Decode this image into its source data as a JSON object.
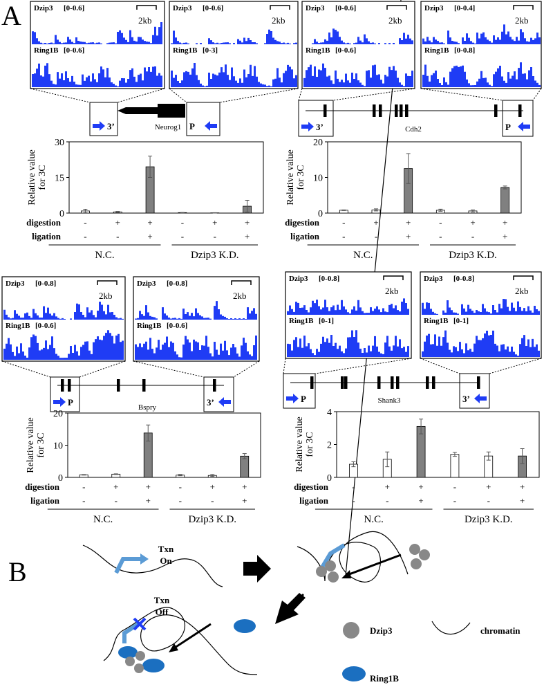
{
  "panel_labels": [
    "A",
    "B"
  ],
  "loci": [
    {
      "gene": "Neurog1",
      "boxes": [
        "3’",
        "P"
      ],
      "windows": [
        {
          "scale": "2kb",
          "tracks": [
            {
              "name": "Dzip3",
              "range": "[0-0.6]"
            },
            {
              "name": "Ring1B",
              "range": "[0-0.6]"
            }
          ]
        },
        {
          "scale": "2kb",
          "tracks": [
            {
              "name": "Dzip3",
              "range": "[0-0.6]"
            },
            {
              "name": "Ring1B",
              "range": "[0-3]"
            }
          ]
        }
      ]
    },
    {
      "gene": "Cdh2",
      "boxes": [
        "3’",
        "P"
      ],
      "windows": [
        {
          "scale": "2kb",
          "tracks": [
            {
              "name": "Dzip3",
              "range": "[0-0.6]"
            },
            {
              "name": "Ring1B",
              "range": "[0-0.6]"
            }
          ]
        },
        {
          "scale": "2kb",
          "tracks": [
            {
              "name": "Dzip3",
              "range": "[0-0.4]"
            },
            {
              "name": "Ring1B",
              "range": "[0-0.8]"
            }
          ]
        }
      ]
    },
    {
      "gene": "Bspry",
      "boxes": [
        "P",
        "3’"
      ],
      "windows": [
        {
          "scale": "2kb",
          "tracks": [
            {
              "name": "Dzip3",
              "range": "[0-0.8]"
            },
            {
              "name": "Ring1B",
              "range": "[0-0.6]"
            }
          ]
        },
        {
          "scale": "2kb",
          "tracks": [
            {
              "name": "Dzip3",
              "range": "[0-0.8]"
            },
            {
              "name": "Ring1B",
              "range": "[0-0.6]"
            }
          ]
        }
      ]
    },
    {
      "gene": "Shank3",
      "boxes": [
        "P",
        "3’"
      ],
      "windows": [
        {
          "scale": "2kb",
          "tracks": [
            {
              "name": "Dzip3",
              "range": "[0-0.8]"
            },
            {
              "name": "Ring1B",
              "range": "[0-1]"
            }
          ]
        },
        {
          "scale": "2kb",
          "tracks": [
            {
              "name": "Dzip3",
              "range": "[0-0.8]"
            },
            {
              "name": "Ring1B",
              "range": "[0-1]"
            }
          ]
        }
      ]
    }
  ],
  "chart_data": [
    {
      "type": "bar",
      "ylabel": [
        "Relative value",
        "for 3C"
      ],
      "ylim": [
        0,
        30
      ],
      "yticks": [
        0,
        15,
        30
      ],
      "values": [
        0.9,
        0.5,
        19.5,
        0.2,
        0.1,
        2.9
      ],
      "errors": [
        0.7,
        0.2,
        4.5,
        0.1,
        0.1,
        2.5
      ],
      "colors": [
        "#ffffff",
        "#ffffff",
        "#808080",
        "#ffffff",
        "#ffffff",
        "#808080"
      ],
      "rows": [
        {
          "name": "digestion",
          "signs": [
            "-",
            "+",
            "+",
            "-",
            "+",
            "+"
          ]
        },
        {
          "name": "ligation",
          "signs": [
            "-",
            "-",
            "+",
            "-",
            "-",
            "+"
          ]
        }
      ],
      "groups": [
        "N.C.",
        "Dzip3 K.D."
      ]
    },
    {
      "type": "bar",
      "ylabel": [
        "Relative value",
        "for 3C"
      ],
      "ylim": [
        0,
        20
      ],
      "yticks": [
        0,
        10,
        20
      ],
      "values": [
        0.8,
        0.9,
        12.5,
        0.8,
        0.6,
        7.2
      ],
      "errors": [
        0.1,
        0.3,
        4.2,
        0.3,
        0.3,
        0.4
      ],
      "colors": [
        "#ffffff",
        "#ffffff",
        "#808080",
        "#ffffff",
        "#ffffff",
        "#808080"
      ],
      "rows": [
        {
          "name": "digestion",
          "signs": [
            "-",
            "+",
            "+",
            "-",
            "+",
            "+"
          ]
        },
        {
          "name": "ligation",
          "signs": [
            "-",
            "-",
            "+",
            "-",
            "-",
            "+"
          ]
        }
      ],
      "groups": [
        "N.C.",
        "Dzip3 K.D."
      ]
    },
    {
      "type": "bar",
      "ylabel": [
        "Relative value",
        "for 3C"
      ],
      "ylim": [
        0,
        20
      ],
      "yticks": [
        0,
        10,
        20
      ],
      "values": [
        0.8,
        1.0,
        13.8,
        0.7,
        0.6,
        6.6
      ],
      "errors": [
        0.1,
        0.1,
        2.5,
        0.2,
        0.3,
        0.8
      ],
      "colors": [
        "#ffffff",
        "#ffffff",
        "#808080",
        "#ffffff",
        "#ffffff",
        "#808080"
      ],
      "rows": [
        {
          "name": "digestion",
          "signs": [
            "-",
            "+",
            "+",
            "-",
            "+",
            "+"
          ]
        },
        {
          "name": "ligation",
          "signs": [
            "-",
            "-",
            "+",
            "-",
            "-",
            "+"
          ]
        }
      ],
      "groups": [
        "N.C.",
        "Dzip3 K.D."
      ]
    },
    {
      "type": "bar",
      "ylabel": [
        "Relative value",
        "for 3C"
      ],
      "ylim": [
        0,
        4
      ],
      "yticks": [
        0,
        2,
        4
      ],
      "values": [
        0.8,
        1.1,
        3.1,
        1.4,
        1.3,
        1.3
      ],
      "errors": [
        0.15,
        0.45,
        0.45,
        0.12,
        0.25,
        0.45
      ],
      "colors": [
        "#ffffff",
        "#ffffff",
        "#808080",
        "#ffffff",
        "#ffffff",
        "#808080"
      ],
      "rows": [
        {
          "name": "digestion",
          "signs": [
            "-",
            "+",
            "+",
            "-",
            "+",
            "+"
          ]
        },
        {
          "name": "ligation",
          "signs": [
            "-",
            "-",
            "+",
            "-",
            "-",
            "+"
          ]
        }
      ],
      "groups": [
        "N.C.",
        "Dzip3 K.D."
      ]
    }
  ],
  "diagram": {
    "txn_on": [
      "Txn",
      "On"
    ],
    "txn_off": [
      "Txn",
      "Off"
    ],
    "legend": [
      "Dzip3",
      "chromatin",
      "Ring1B"
    ]
  }
}
